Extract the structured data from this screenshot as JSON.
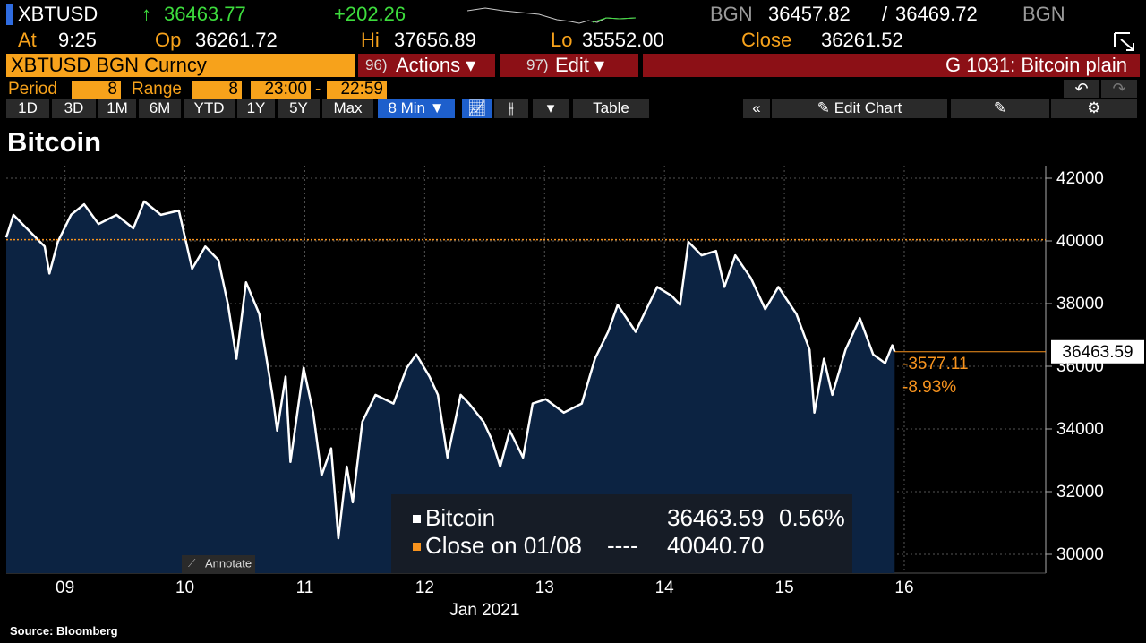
{
  "header": {
    "ticker": "XBTUSD",
    "arrow": "↑",
    "last": "36463.77",
    "change": "+202.26",
    "bid_source": "BGN",
    "bid": "36457.82",
    "separator": "/",
    "ask": "36469.72",
    "ask_source": "BGN"
  },
  "quote": {
    "at_label": "At",
    "at": "9:25",
    "open_label": "Op",
    "open": "36261.72",
    "high_label": "Hi",
    "high": "37656.89",
    "low_label": "Lo",
    "low": "35552.00",
    "close_label": "Close",
    "close": "36261.52"
  },
  "menu": {
    "security": "XBTUSD BGN Curncy",
    "actions_num": "96)",
    "actions": "Actions ▾",
    "edit_num": "97)",
    "edit": "Edit ▾",
    "page": "G 1031: Bitcoin plain"
  },
  "settings": {
    "period_label": "Period",
    "period": "8",
    "range_label": "Range",
    "range": "8",
    "start": "23:00",
    "dash": "-",
    "end": "22:59"
  },
  "toolbar": {
    "buttons": [
      "1D",
      "3D",
      "1M",
      "6M",
      "YTD",
      "1Y",
      "5Y",
      "Max"
    ],
    "interval": "8 Min ▼",
    "table": "Table",
    "edit_chart": "Edit Chart"
  },
  "footer": {
    "annotate": "Annotate",
    "source": "Source: Bloomberg"
  },
  "chart_data": {
    "type": "line",
    "title": "Bitcoin",
    "xlabel": "Jan 2021",
    "x": [
      8.51,
      8.57,
      8.68,
      8.83,
      8.87,
      8.94,
      9.05,
      9.16,
      9.28,
      9.43,
      9.57,
      9.66,
      9.8,
      9.95,
      10.06,
      10.17,
      10.28,
      10.36,
      10.43,
      10.51,
      10.62,
      10.73,
      10.77,
      10.84,
      10.88,
      10.99,
      11.07,
      11.14,
      11.22,
      11.28,
      11.35,
      11.4,
      11.48,
      11.59,
      11.74,
      11.85,
      11.93,
      12.04,
      12.11,
      12.19,
      12.3,
      12.37,
      12.49,
      12.56,
      12.63,
      12.71,
      12.82,
      12.9,
      13.01,
      13.16,
      13.31,
      13.42,
      13.53,
      13.61,
      13.76,
      13.83,
      13.94,
      14.06,
      14.13,
      14.2,
      14.31,
      14.43,
      14.5,
      14.59,
      14.72,
      14.84,
      14.95,
      15.1,
      15.21,
      15.25,
      15.33,
      15.4,
      15.51,
      15.63,
      15.74,
      15.84,
      15.9,
      15.92
    ],
    "series": [
      {
        "name": "Bitcoin",
        "color": "#ffffff",
        "fill": "#0c2342",
        "values": [
          40110,
          40830,
          40400,
          39820,
          38960,
          39970,
          40830,
          41170,
          40540,
          40830,
          40400,
          41260,
          40830,
          40970,
          39110,
          39820,
          39390,
          37960,
          36240,
          38680,
          37670,
          35090,
          33950,
          35670,
          32950,
          35950,
          34520,
          32520,
          33380,
          30510,
          32800,
          31660,
          34230,
          35090,
          34810,
          35950,
          36380,
          35670,
          35090,
          33090,
          35090,
          34810,
          34230,
          33660,
          32800,
          33950,
          33090,
          34810,
          34950,
          34520,
          34810,
          36240,
          37100,
          37960,
          37100,
          37670,
          38530,
          38250,
          37960,
          39970,
          39540,
          39680,
          38530,
          39540,
          38820,
          37820,
          38530,
          37670,
          36530,
          34520,
          36240,
          35090,
          36530,
          37530,
          36380,
          36100,
          36670,
          36463.59
        ]
      }
    ],
    "legend": {
      "change": "0.56%",
      "dashes": "----"
    },
    "reference_line": {
      "name": "Close on 01/08",
      "value": 40040.7,
      "value_label": "40040.70",
      "color": "#f7931e"
    },
    "annotations": [
      "-3577.11",
      "-8.93%"
    ],
    "xlim": [
      8.51,
      17.18
    ],
    "xticks": [
      {
        "value": 9,
        "label": "09"
      },
      10,
      11,
      12,
      13,
      14,
      15,
      16
    ],
    "ylim": [
      29400,
      42400
    ],
    "yticks": [
      30000,
      32000,
      34000,
      36000,
      38000,
      40000,
      42000
    ],
    "grid": true
  }
}
